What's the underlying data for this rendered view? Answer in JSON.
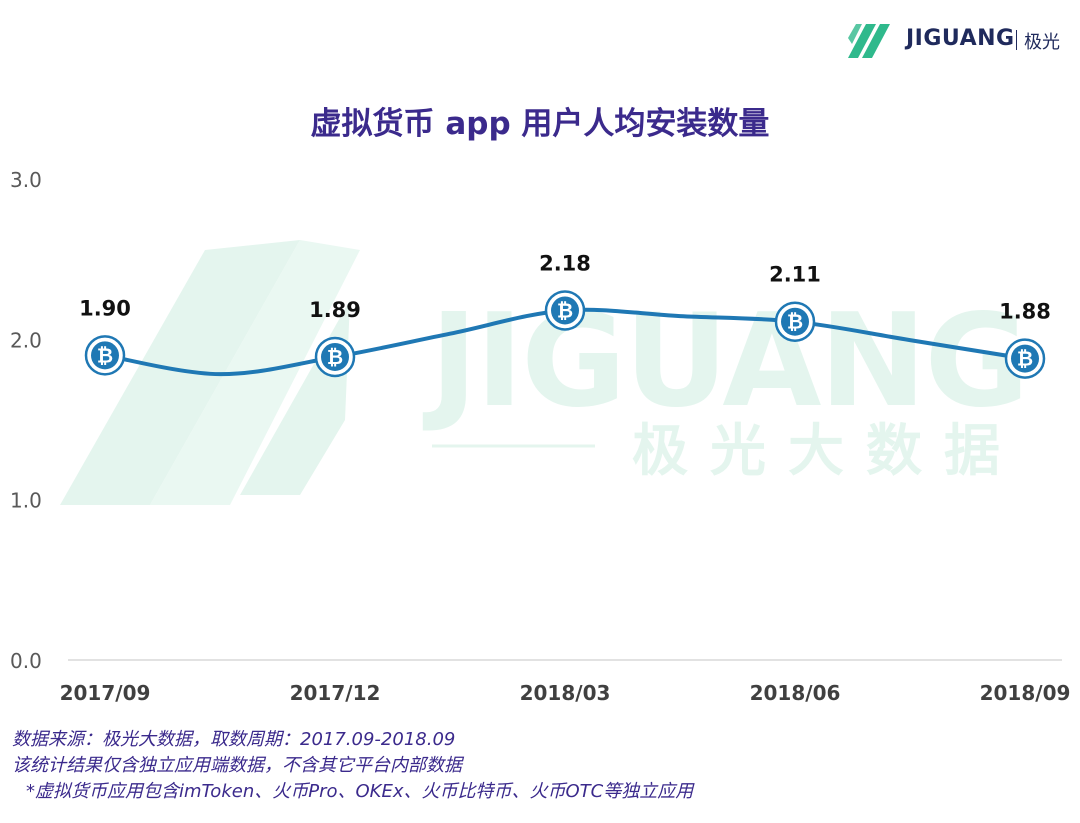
{
  "logo": {
    "brand": "JIGUANG",
    "brand_cn": "极光"
  },
  "watermark": {
    "brand": "JIGUANG",
    "tagline": "极光大数据"
  },
  "chart_data": {
    "type": "line",
    "title": "虚拟货币 app 用户人均安装数量",
    "categories": [
      "2017/09",
      "2017/12",
      "2018/03",
      "2018/06",
      "2018/09"
    ],
    "values": [
      1.9,
      1.89,
      2.18,
      2.11,
      1.88
    ],
    "value_labels": [
      "1.90",
      "1.89",
      "2.18",
      "2.11",
      "1.88"
    ],
    "y_ticks": [
      "0.0",
      "1.0",
      "2.0",
      "3.0"
    ],
    "ylim": [
      0,
      3
    ],
    "grid": false,
    "line_color": "#1f78b4",
    "marker_icon": "bitcoin-icon"
  },
  "footnotes": [
    "数据来源：极光大数据，取数周期：2017.09-2018.09",
    "该统计结果仅含独立应用端数据，不含其它平台内部数据",
    "*虚拟货币应用包含imToken、火币Pro、OKEx、火币比特币、火币OTC等独立应用"
  ]
}
